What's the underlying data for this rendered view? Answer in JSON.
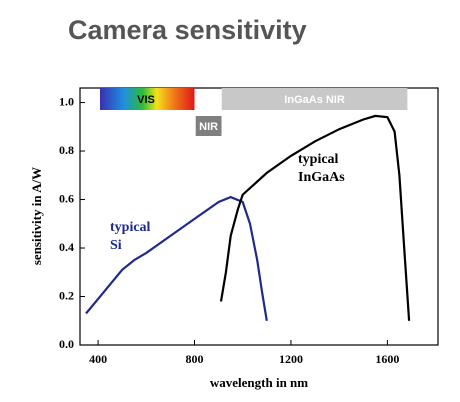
{
  "chart_data": {
    "type": "line",
    "title": "Camera sensitivity",
    "x_label": "wavelength in nm",
    "y_label": "sensitivity in A/W",
    "xlim": [
      325,
      1810
    ],
    "ylim": [
      0,
      1.06
    ],
    "xticks": [
      400,
      800,
      1200,
      1600
    ],
    "yticks": [
      {
        "value": 0,
        "label": "0.0"
      },
      0.2,
      0.4,
      0.6,
      0.8,
      {
        "value": 1,
        "label": "1.0"
      }
    ],
    "series": [
      {
        "name": "typical Si",
        "color": "#1f2a8c",
        "x": [
          350,
          400,
          500,
          550,
          600,
          700,
          800,
          900,
          950,
          1000,
          1030,
          1060,
          1080,
          1100
        ],
        "values": [
          0.13,
          0.19,
          0.31,
          0.35,
          0.38,
          0.45,
          0.52,
          0.59,
          0.61,
          0.59,
          0.5,
          0.35,
          0.22,
          0.1
        ]
      },
      {
        "name": "typical InGaAs",
        "color": "#000000",
        "x": [
          910,
          930,
          950,
          980,
          1000,
          1100,
          1200,
          1300,
          1400,
          1500,
          1550,
          1600,
          1630,
          1650,
          1670,
          1690
        ],
        "values": [
          0.18,
          0.3,
          0.45,
          0.56,
          0.62,
          0.71,
          0.78,
          0.84,
          0.89,
          0.93,
          0.945,
          0.94,
          0.88,
          0.7,
          0.4,
          0.1
        ]
      }
    ],
    "annotations": [
      {
        "lines": [
          "typical",
          "Si"
        ],
        "color": "#1f2a8c"
      },
      {
        "lines": [
          "typical",
          "InGaAs"
        ],
        "color": "#000000"
      }
    ],
    "bands": [
      {
        "label": "VIS",
        "start": 408,
        "end": 800,
        "color": "gradient"
      },
      {
        "label": "NIR",
        "start": 805,
        "end": 912,
        "color": "#7f7f7f"
      },
      {
        "label": "InGaAs NIR",
        "start": 913,
        "end": 1683,
        "color": "#c8c8c8"
      }
    ]
  }
}
